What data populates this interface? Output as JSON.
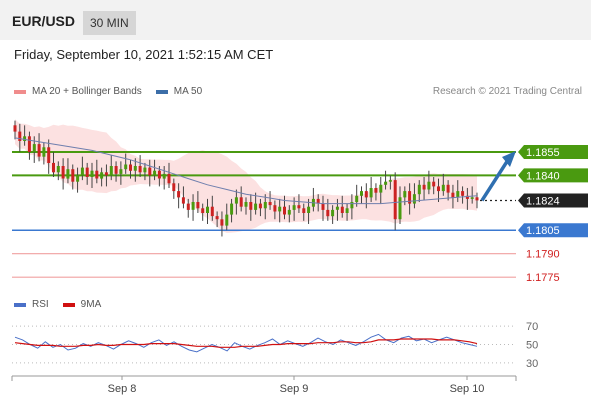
{
  "header": {
    "pair": "EUR/USD",
    "timeframe": "30 MIN"
  },
  "datetime": "Friday, September 10, 2021 1:52:15 AM CET",
  "legend": {
    "ma_bb": {
      "label": "MA 20 + Bollinger Bands",
      "color": "#f08c8c"
    },
    "ma50": {
      "label": "MA 50",
      "color": "#3c6ea8"
    }
  },
  "credit": "Research © 2021 Trading Central",
  "rsi_legend": {
    "rsi": {
      "label": "RSI",
      "color": "#4a70c8"
    },
    "ma9": {
      "label": "9MA",
      "color": "#d01010"
    }
  },
  "colors": {
    "resistance": "#4a9a10",
    "support_strong": "#3a78d0",
    "support_weak": "#f0a0a0",
    "current": "#222222",
    "bull": "#4a9a10",
    "bear": "#cc2222",
    "arrow": "#2f6fb0"
  },
  "chart_data": {
    "type": "candlestick",
    "price_ylim": [
      1.177,
      1.1885
    ],
    "x_ticks": [
      "Sep 8",
      "Sep 9",
      "Sep 10"
    ],
    "levels": [
      {
        "value": 1.1855,
        "label": "1.1855",
        "kind": "resistance"
      },
      {
        "value": 1.184,
        "label": "1.1840",
        "kind": "resistance"
      },
      {
        "value": 1.1824,
        "label": "1.1824",
        "kind": "current"
      },
      {
        "value": 1.1805,
        "label": "1.1805",
        "kind": "support_strong"
      },
      {
        "value": 1.179,
        "label": "1.1790",
        "kind": "support_weak"
      },
      {
        "value": 1.1775,
        "label": "1.1775",
        "kind": "support_weak"
      }
    ],
    "price_closes": [
      1.1868,
      1.1862,
      1.1865,
      1.1855,
      1.186,
      1.1852,
      1.1858,
      1.1848,
      1.1842,
      1.1846,
      1.1838,
      1.1844,
      1.1836,
      1.184,
      1.1845,
      1.1839,
      1.1843,
      1.1838,
      1.1842,
      1.184,
      1.1846,
      1.1841,
      1.1844,
      1.1847,
      1.1843,
      1.1846,
      1.1842,
      1.1845,
      1.184,
      1.1843,
      1.1838,
      1.1841,
      1.1835,
      1.183,
      1.1826,
      1.1822,
      1.1818,
      1.1823,
      1.1819,
      1.1816,
      1.182,
      1.1814,
      1.1812,
      1.1808,
      1.1815,
      1.1822,
      1.1826,
      1.182,
      1.1823,
      1.1818,
      1.1822,
      1.1819,
      1.1823,
      1.1821,
      1.1817,
      1.182,
      1.1815,
      1.1818,
      1.1821,
      1.1819,
      1.1816,
      1.182,
      1.1825,
      1.1822,
      1.1818,
      1.1814,
      1.1818,
      1.182,
      1.1816,
      1.1819,
      1.1823,
      1.1827,
      1.183,
      1.1826,
      1.1832,
      1.1829,
      1.1834,
      1.1836,
      1.1837,
      1.1812,
      1.1826,
      1.183,
      1.1822,
      1.1828,
      1.1834,
      1.1831,
      1.1836,
      1.1833,
      1.183,
      1.1834,
      1.1829,
      1.1826,
      1.183,
      1.1827,
      1.1825,
      1.1826,
      1.1824
    ],
    "ma50": [
      1.1864,
      1.1862,
      1.186,
      1.1858,
      1.1856,
      1.1853,
      1.185,
      1.1846,
      1.1842,
      1.1838,
      1.1834,
      1.1831,
      1.1828,
      1.1826,
      1.1824,
      1.1823,
      1.1822,
      1.1822,
      1.1822,
      1.1822,
      1.1823,
      1.1824,
      1.1825,
      1.1826,
      1.1827
    ],
    "rsi_ylim": [
      20,
      80
    ],
    "rsi_levels": [
      70,
      50,
      30
    ],
    "rsi": [
      58,
      55,
      50,
      46,
      53,
      47,
      50,
      44,
      46,
      51,
      48,
      52,
      49,
      45,
      50,
      54,
      51,
      47,
      52,
      55,
      49,
      53,
      48,
      44,
      42,
      46,
      50,
      47,
      43,
      52,
      48,
      45,
      49,
      52,
      56,
      50,
      54,
      51,
      48,
      52,
      57,
      53,
      50,
      55,
      52,
      49,
      53,
      58,
      61,
      55,
      52,
      57,
      59,
      54,
      56,
      52,
      55,
      58,
      55,
      52,
      50,
      48
    ],
    "rsi_ma9": [
      52,
      51,
      50,
      49,
      49,
      49,
      48,
      48,
      48,
      49,
      49,
      50,
      49,
      49,
      50,
      50,
      50,
      50,
      51,
      51,
      51,
      51,
      50,
      49,
      48,
      48,
      48,
      47,
      47,
      47,
      48,
      48,
      48,
      49,
      50,
      50,
      51,
      51,
      51,
      51,
      52,
      52,
      52,
      53,
      53,
      52,
      52,
      53,
      55,
      55,
      55,
      56,
      56,
      56,
      56,
      56,
      55,
      55,
      55,
      54,
      53,
      51
    ]
  }
}
